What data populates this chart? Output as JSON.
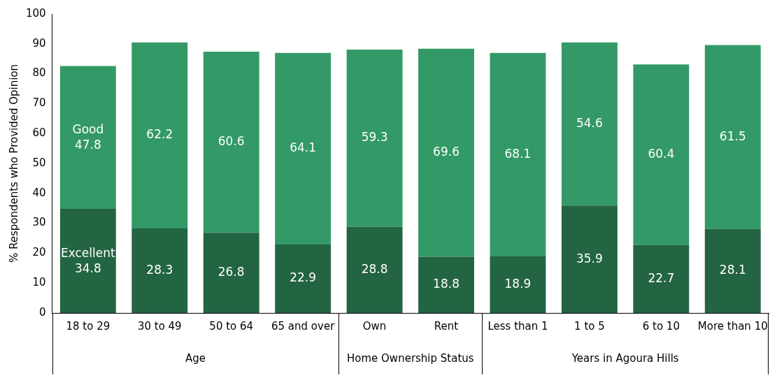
{
  "chart_data": {
    "type": "bar",
    "stacked": true,
    "ylabel": "% Respondents who Provided Opinion",
    "categories": [
      "18 to 29",
      "30 to 49",
      "50 to 64",
      "65 and over",
      "Own",
      "Rent",
      "Less than 1",
      "1 to 5",
      "6 to 10",
      "More than 10"
    ],
    "series": [
      {
        "name": "Excellent",
        "color": "#236443",
        "values": [
          34.8,
          28.3,
          26.8,
          22.9,
          28.8,
          18.8,
          18.9,
          35.9,
          22.7,
          28.1
        ]
      },
      {
        "name": "Good",
        "color": "#339966",
        "values": [
          47.8,
          62.2,
          60.6,
          64.1,
          59.3,
          69.6,
          68.1,
          54.6,
          60.4,
          61.5
        ]
      }
    ],
    "ylim": [
      0,
      100
    ],
    "yticks": [
      0,
      10,
      20,
      30,
      40,
      50,
      60,
      70,
      80,
      90,
      100
    ],
    "grid": false,
    "legend": false,
    "data_labels": true,
    "annotations": [
      "Age",
      "Home Ownership Status",
      "Years in Agoura Hills"
    ]
  }
}
